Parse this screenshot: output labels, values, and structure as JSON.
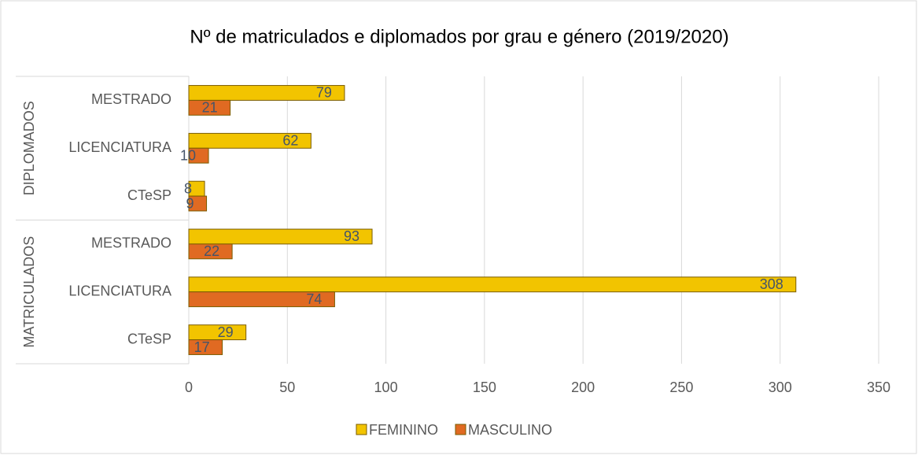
{
  "chart_data": {
    "type": "bar",
    "orientation": "horizontal",
    "title": "Nº de matriculados e diplomados por grau e género (2019/2020)",
    "groups": [
      {
        "name": "DIPLOMADOS",
        "categories": [
          "MESTRADO",
          "LICENCIATURA",
          "CTeSP"
        ]
      },
      {
        "name": "MATRICULADOS",
        "categories": [
          "MESTRADO",
          "LICENCIATURA",
          "CTeSP"
        ]
      }
    ],
    "series": [
      {
        "name": "FEMININO",
        "color": "#f2c400",
        "values": [
          79,
          62,
          8,
          93,
          308,
          29
        ]
      },
      {
        "name": "MASCULINO",
        "color": "#e06a22",
        "values": [
          21,
          10,
          9,
          22,
          74,
          17
        ]
      }
    ],
    "xlim": [
      0,
      350
    ],
    "xticks": [
      0,
      50,
      100,
      150,
      200,
      250,
      300,
      350
    ],
    "grid": true,
    "legend": "bottom"
  }
}
